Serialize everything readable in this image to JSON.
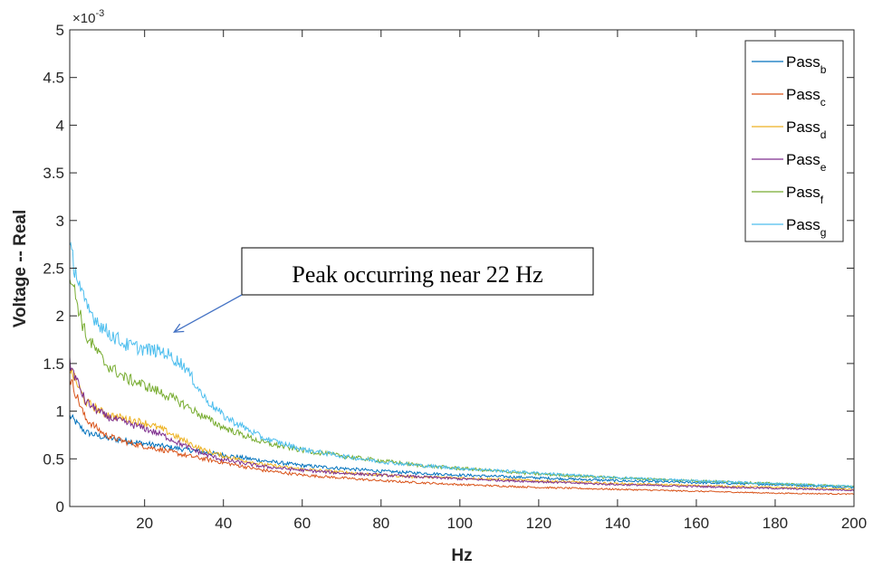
{
  "chart_data": {
    "type": "line",
    "xlabel": "Hz",
    "ylabel": "Voltage -- Real",
    "x_range": [
      1,
      200
    ],
    "ylim": [
      0,
      0.005
    ],
    "y_exponent_label": "×10",
    "y_exponent_power": "-3",
    "x_ticks": [
      20,
      40,
      60,
      80,
      100,
      120,
      140,
      160,
      180,
      200
    ],
    "x_tick_labels": [
      "20",
      "40",
      "60",
      "80",
      "100",
      "120",
      "140",
      "160",
      "180",
      "200"
    ],
    "y_ticks": [
      0,
      0.0005,
      0.001,
      0.0015,
      0.002,
      0.0025,
      0.003,
      0.0035,
      0.004,
      0.0045,
      0.005
    ],
    "y_tick_labels": [
      "0",
      "0.5",
      "1",
      "1.5",
      "2",
      "2.5",
      "3",
      "3.5",
      "4",
      "4.5",
      "5"
    ],
    "grid": false,
    "legend_position": "top-right",
    "x": [
      1,
      5,
      10,
      15,
      20,
      25,
      30,
      35,
      40,
      50,
      60,
      70,
      80,
      90,
      100,
      120,
      140,
      160,
      180,
      200
    ],
    "series": [
      {
        "base": "Pass",
        "sub": "b",
        "color": "#0072BD",
        "values": [
          0.00095,
          0.00078,
          0.00072,
          0.00069,
          0.00066,
          0.00063,
          0.0006,
          0.00057,
          0.00054,
          0.00048,
          0.00043,
          0.0004,
          0.00037,
          0.00035,
          0.00033,
          0.0003,
          0.00027,
          0.00025,
          0.00023,
          0.0002
        ]
      },
      {
        "base": "Pass",
        "sub": "c",
        "color": "#D95319",
        "values": [
          0.00135,
          0.00092,
          0.00075,
          0.00068,
          0.00063,
          0.00059,
          0.00054,
          0.0005,
          0.00046,
          0.00038,
          0.00033,
          0.0003,
          0.00027,
          0.00025,
          0.00023,
          0.0002,
          0.00018,
          0.00016,
          0.00014,
          0.00013
        ]
      },
      {
        "base": "Pass",
        "sub": "d",
        "color": "#EDB120",
        "values": [
          0.00145,
          0.0011,
          0.00097,
          0.00092,
          0.00088,
          0.0008,
          0.00069,
          0.00059,
          0.00053,
          0.00044,
          0.00039,
          0.00036,
          0.00033,
          0.00031,
          0.0003,
          0.00027,
          0.00024,
          0.00022,
          0.0002,
          0.00018
        ]
      },
      {
        "base": "Pass",
        "sub": "e",
        "color": "#7E2F8E",
        "values": [
          0.0015,
          0.0011,
          0.00095,
          0.00088,
          0.00082,
          0.00074,
          0.00064,
          0.00055,
          0.00049,
          0.00042,
          0.00038,
          0.00035,
          0.00033,
          0.00031,
          0.00029,
          0.00026,
          0.00023,
          0.00021,
          0.00019,
          0.00017
        ]
      },
      {
        "base": "Pass",
        "sub": "f",
        "color": "#77AC30",
        "values": [
          0.00245,
          0.0018,
          0.0015,
          0.00135,
          0.00127,
          0.00118,
          0.00107,
          0.00094,
          0.00083,
          0.00067,
          0.00059,
          0.00053,
          0.00048,
          0.00043,
          0.0004,
          0.00034,
          0.0003,
          0.00027,
          0.00024,
          0.00021
        ]
      },
      {
        "base": "Pass",
        "sub": "g",
        "color": "#4DBEEE",
        "values": [
          0.0027,
          0.0021,
          0.00185,
          0.0017,
          0.00165,
          0.00162,
          0.00148,
          0.00115,
          0.00095,
          0.00072,
          0.0006,
          0.00053,
          0.00047,
          0.00043,
          0.0004,
          0.00035,
          0.0003,
          0.00027,
          0.00024,
          0.00021
        ]
      }
    ],
    "annotation": {
      "text": "Peak occurring near 22 Hz",
      "arrow_tip": {
        "x": 27.5,
        "y": 0.00183
      }
    }
  }
}
